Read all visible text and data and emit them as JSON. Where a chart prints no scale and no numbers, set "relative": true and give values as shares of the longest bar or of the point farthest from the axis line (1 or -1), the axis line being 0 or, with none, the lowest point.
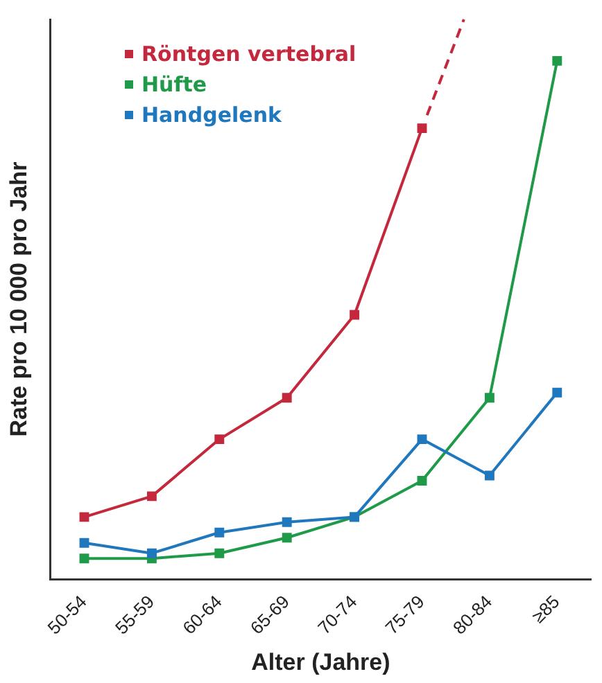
{
  "chart_data": {
    "type": "line",
    "relative": true,
    "xlabel": "Alter (Jahre)",
    "ylabel": "Rate pro 10 000 pro Jahr",
    "categories": [
      "50-54",
      "55-59",
      "60-64",
      "65-69",
      "70-74",
      "75-79",
      "80-84",
      "≥85"
    ],
    "marker": "square",
    "line_style": "solid",
    "legend": "top left",
    "grid": false,
    "series": [
      {
        "name": "Röntgen vertebral",
        "color": "#c4283c",
        "values": [
          0.12,
          0.16,
          0.27,
          0.35,
          0.51,
          0.87,
          null,
          null
        ]
      },
      {
        "name": "Hüfte",
        "color": "#1e9a48",
        "values": [
          0.04,
          0.04,
          0.05,
          0.08,
          0.12,
          0.19,
          0.35,
          1
        ]
      },
      {
        "name": "Handgelenk",
        "color": "#1f78be",
        "values": [
          0.07,
          0.05,
          0.09,
          0.11,
          0.12,
          0.27,
          0.2,
          0.36
        ]
      }
    ]
  }
}
